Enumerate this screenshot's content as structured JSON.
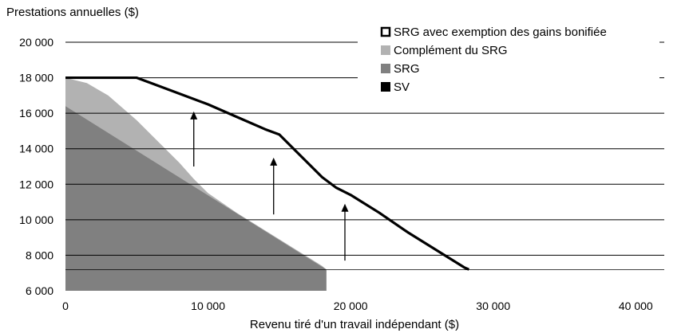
{
  "chart_data": {
    "type": "area",
    "ylabel": "Prestations annuelles  ($)",
    "xlabel": "Revenu  tiré d'un travail  indépendant  ($)",
    "xlim": [
      0,
      42000
    ],
    "ylim": [
      6000,
      20000
    ],
    "x_ticks": [
      0,
      10000,
      20000,
      30000,
      40000
    ],
    "x_tick_labels": [
      "0",
      "10 000",
      "20 000",
      "30 000",
      "40 000"
    ],
    "y_ticks": [
      6000,
      8000,
      10000,
      12000,
      14000,
      16000,
      18000,
      20000
    ],
    "y_tick_labels": [
      "6 000",
      "8 000",
      "10 000",
      "12 000",
      "14 000",
      "16 000",
      "18 000",
      "20 000"
    ],
    "grid": "horizontal",
    "legend_position": "top-right",
    "series": [
      {
        "name": "SRG avec exemption des gains bonifiée",
        "kind": "line",
        "color": "#000000",
        "x": [
          0,
          5000,
          6000,
          8000,
          10000,
          12000,
          14000,
          15000,
          16000,
          18000,
          19000,
          20000,
          22000,
          24000,
          26000,
          28000,
          28300
        ],
        "y": [
          18000,
          18000,
          17700,
          17100,
          16500,
          15800,
          15100,
          14800,
          14000,
          12400,
          11800,
          11400,
          10400,
          9300,
          8300,
          7300,
          7200
        ]
      },
      {
        "name": "Complément du SRG",
        "kind": "area",
        "color": "#b2b2b2",
        "x": [
          0,
          1500,
          3000,
          5000,
          6000,
          8000,
          9000,
          10000,
          12000,
          15000,
          18000,
          18300
        ],
        "y": [
          18000,
          17700,
          17000,
          15600,
          14800,
          13200,
          12300,
          11500,
          10400,
          8900,
          7400,
          7200
        ]
      },
      {
        "name": "SRG",
        "kind": "area",
        "color": "#808080",
        "x": [
          0,
          18300
        ],
        "y": [
          16400,
          7200
        ]
      },
      {
        "name": "SV",
        "kind": "area",
        "color": "#000000",
        "x": [
          0,
          42000
        ],
        "y": [
          7200,
          7200
        ],
        "base": 6000
      }
    ],
    "arrows": [
      {
        "x": 9000,
        "y_from": 13000,
        "y_to": 16100
      },
      {
        "x": 14600,
        "y_from": 10300,
        "y_to": 13500
      },
      {
        "x": 19600,
        "y_from": 7700,
        "y_to": 10900
      }
    ]
  }
}
